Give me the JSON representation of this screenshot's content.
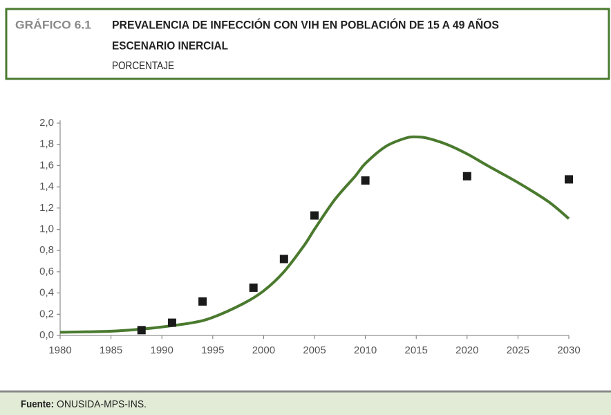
{
  "chart_data": {
    "type": "line",
    "label": "GRÁFICO 6.1",
    "title": "PREVALENCIA DE INFECCIÓN CON VIH EN POBLACIÓN DE 15 A 49 AÑOS",
    "subtitle": "ESCENARIO INERCIAL",
    "unit": "PORCENTAJE",
    "source": {
      "label": "Fuente:",
      "text": "ONUSIDA-MPS-INS."
    },
    "xlim": [
      1980,
      2030
    ],
    "xticks": [
      1980,
      1985,
      1990,
      1995,
      2000,
      2005,
      2010,
      2015,
      2020,
      2025,
      2030
    ],
    "ylim": [
      0,
      2
    ],
    "yticks": [
      {
        "value": 0,
        "label": "0,0"
      },
      {
        "value": 0.2,
        "label": "0,2"
      },
      {
        "value": 0.4,
        "label": "0,4"
      },
      {
        "value": 0.6,
        "label": "0,6"
      },
      {
        "value": 0.8,
        "label": "0,8"
      },
      {
        "value": 1.0,
        "label": "1,0"
      },
      {
        "value": 1.2,
        "label": "1,2"
      },
      {
        "value": 1.4,
        "label": "1,4"
      },
      {
        "value": 1.6,
        "label": "1,6"
      },
      {
        "value": 1.8,
        "label": "1,8"
      },
      {
        "value": 2.0,
        "label": "2,0"
      }
    ],
    "series": [
      {
        "mode": "line",
        "color": "#4a7a2e",
        "x": [
          1980,
          1985,
          1988,
          1990,
          1993,
          1995,
          1998,
          2000,
          2002,
          2004,
          2005,
          2007,
          2009,
          2010,
          2012,
          2014,
          2015,
          2016,
          2018,
          2020,
          2022,
          2025,
          2028,
          2030
        ],
        "values": [
          0.03,
          0.04,
          0.06,
          0.08,
          0.12,
          0.17,
          0.3,
          0.42,
          0.6,
          0.85,
          1.0,
          1.28,
          1.5,
          1.62,
          1.78,
          1.86,
          1.87,
          1.86,
          1.8,
          1.71,
          1.6,
          1.44,
          1.26,
          1.1
        ]
      },
      {
        "mode": "markers",
        "color": "#1a1a1a",
        "x": [
          1988,
          1991,
          1994,
          1999,
          2002,
          2005,
          2010,
          2020,
          2030
        ],
        "values": [
          0.05,
          0.12,
          0.32,
          0.45,
          0.72,
          1.13,
          1.46,
          1.5,
          1.47
        ]
      }
    ]
  }
}
